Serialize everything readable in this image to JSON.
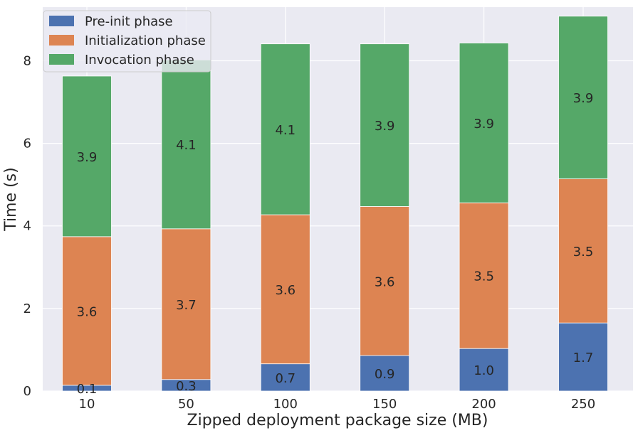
{
  "chart_data": {
    "type": "bar",
    "stacked": true,
    "title": "",
    "xlabel": "Zipped deployment package size (MB)",
    "ylabel": "Time (s)",
    "categories": [
      "10",
      "50",
      "100",
      "150",
      "200",
      "250"
    ],
    "ylim": [
      0,
      9.3
    ],
    "yticks": [
      "0",
      "2",
      "4",
      "6",
      "8"
    ],
    "grid": true,
    "legend_position": "top-left",
    "series": [
      {
        "name": "Pre-init phase",
        "values": [
          0.14,
          0.28,
          0.66,
          0.86,
          1.03,
          1.65
        ],
        "labels": [
          "0.1",
          "0.3",
          "0.7",
          "0.9",
          "1.0",
          "1.7"
        ],
        "color": "#4c72b0"
      },
      {
        "name": "Initialization phase",
        "values": [
          3.6,
          3.65,
          3.61,
          3.61,
          3.53,
          3.49
        ],
        "labels": [
          "3.6",
          "3.7",
          "3.6",
          "3.6",
          "3.5",
          "3.5"
        ],
        "color": "#dd8452"
      },
      {
        "name": "Invocation phase",
        "values": [
          3.89,
          4.09,
          4.14,
          3.94,
          3.87,
          3.94
        ],
        "labels": [
          "3.9",
          "4.1",
          "4.1",
          "3.9",
          "3.9",
          "3.9"
        ],
        "color": "#55a868"
      }
    ]
  }
}
